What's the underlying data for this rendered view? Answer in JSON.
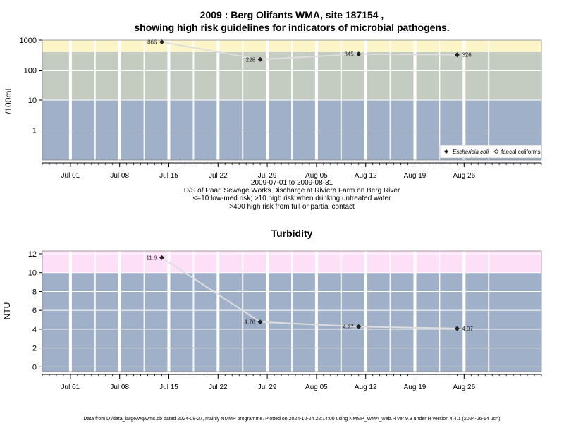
{
  "chart_data": [
    {
      "type": "line",
      "title_line1": "2009 : Berg Olifants WMA, site 187154 ,",
      "title_line2": "showing high risk guidelines for indicators of microbial pathogens.",
      "ylabel": "/100mL",
      "xlabel": "",
      "yscale": "log",
      "ylim": [
        0.1,
        1000
      ],
      "xlim": [
        "2009-06-27",
        "2009-09-06"
      ],
      "grid": true,
      "bands": [
        {
          "from": 0.1,
          "to": 10,
          "color": "#a0b0c8"
        },
        {
          "from": 10,
          "to": 400,
          "color": "#c4ccc2"
        },
        {
          "from": 400,
          "to": 1000,
          "color": "#fbf5c8"
        }
      ],
      "ytick_labels": [
        "1",
        "10",
        "100",
        "1000"
      ],
      "ytick_values": [
        1,
        10,
        100,
        1000
      ],
      "xtick_labels": [
        "Jul 01",
        "Jul 08",
        "Jul 15",
        "Jul 22",
        "Jul 29",
        "Aug 05",
        "Aug 12",
        "Aug 19",
        "Aug 26"
      ],
      "xtick_dates": [
        "2009-07-01",
        "2009-07-08",
        "2009-07-15",
        "2009-07-22",
        "2009-07-29",
        "2009-08-05",
        "2009-08-12",
        "2009-08-19",
        "2009-08-26"
      ],
      "series": [
        {
          "name": "Eschericia coli",
          "marker": "filled-diamond",
          "x": [
            "2009-07-14",
            "2009-07-28",
            "2009-08-11",
            "2009-08-25"
          ],
          "values": [
            866,
            228,
            345,
            326
          ],
          "labels": [
            "866",
            "228",
            "345",
            "326"
          ]
        }
      ],
      "legend": {
        "placement": "bottom-right",
        "entries": [
          {
            "label": "Eschericia coli",
            "marker": "filled-diamond",
            "italic": true
          },
          {
            "label": "faecal coliforms",
            "marker": "open-diamond",
            "italic": false
          }
        ]
      },
      "caption": [
        "2009-07-01 to 2009-08-31",
        "D/S of Paarl Sewage Works Discharge at Riviera Farm on Berg River",
        "<=10 low-med risk; >10 high risk when drinking untreated water",
        ">400 high risk from full or partial contact"
      ]
    },
    {
      "type": "line",
      "title": "Turbidity",
      "ylabel": "NTU",
      "xlabel": "",
      "yscale": "linear",
      "ylim": [
        -0.5,
        12.3
      ],
      "xlim": [
        "2009-06-27",
        "2009-09-06"
      ],
      "grid": true,
      "bands": [
        {
          "from": -0.5,
          "to": 10,
          "color": "#a0b0c8"
        },
        {
          "from": 10,
          "to": 12.3,
          "color": "#fde0f8"
        }
      ],
      "ytick_labels": [
        "0",
        "2",
        "4",
        "6",
        "8",
        "10",
        "12"
      ],
      "ytick_values": [
        0,
        2,
        4,
        6,
        8,
        10,
        12
      ],
      "xtick_labels": [
        "Jul 01",
        "Jul 08",
        "Jul 15",
        "Jul 22",
        "Jul 29",
        "Aug 05",
        "Aug 12",
        "Aug 19",
        "Aug 26"
      ],
      "xtick_dates": [
        "2009-07-01",
        "2009-07-08",
        "2009-07-15",
        "2009-07-22",
        "2009-07-29",
        "2009-08-05",
        "2009-08-12",
        "2009-08-19",
        "2009-08-26"
      ],
      "series": [
        {
          "name": "",
          "marker": "filled-diamond",
          "x": [
            "2009-07-14",
            "2009-07-28",
            "2009-08-11",
            "2009-08-25"
          ],
          "values": [
            11.6,
            4.76,
            4.27,
            4.07
          ],
          "labels": [
            "11.6",
            "4.76",
            "4.27",
            "4.07"
          ]
        }
      ]
    }
  ],
  "footer": "Data from D:/data_large/wq/wms.db dated 2024-08-27, mainly NMMP programme. Plotted on 2024-10-24 22:14:00 using NMMP_WMA_web.R ver 9.3 under R version 4.4.1 (2024-06-14 ucrt)"
}
